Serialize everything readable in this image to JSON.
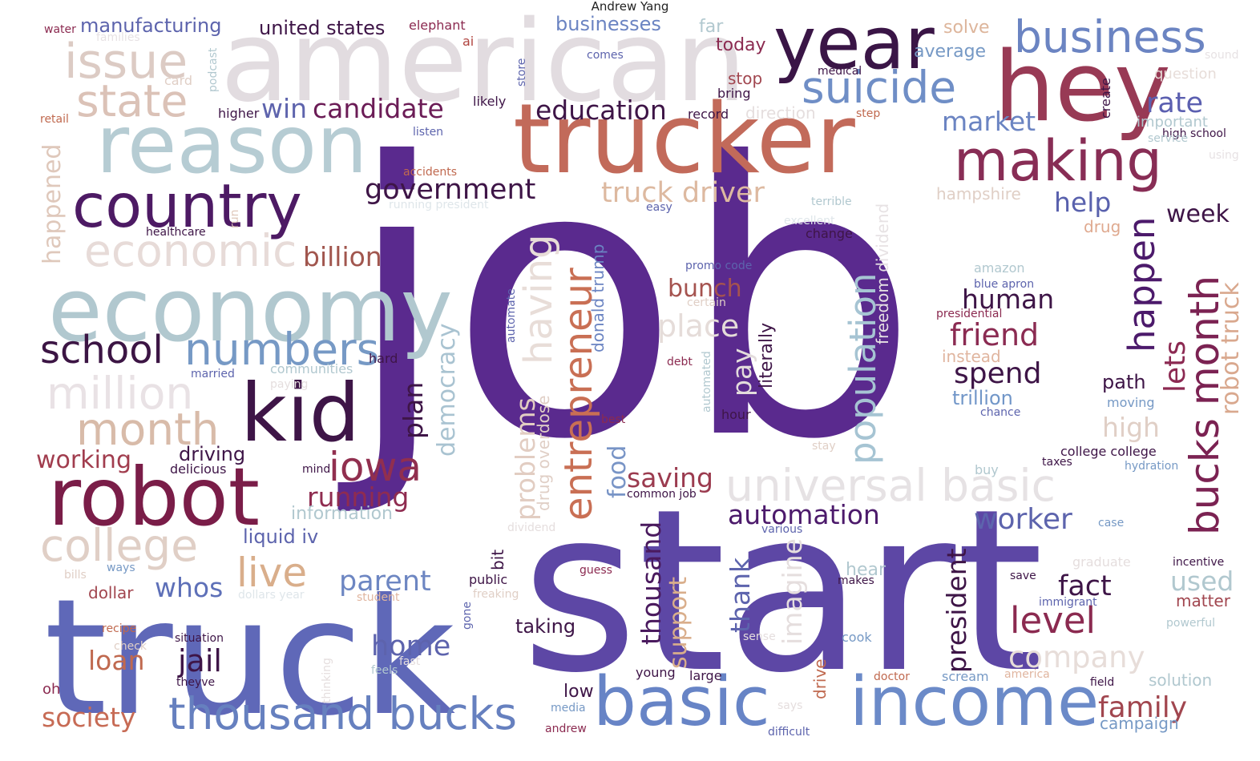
{
  "title": "Andrew Yang",
  "words": [
    {
      "text": "job",
      "color": "#5a2a8e"
    },
    {
      "text": "start",
      "color": "#5d47a5"
    },
    {
      "text": "truck",
      "color": "#5f68b8"
    },
    {
      "text": "american",
      "color": "#e2dce0"
    },
    {
      "text": "trucker",
      "color": "#c26a5a"
    },
    {
      "text": "hey",
      "color": "#983a55"
    },
    {
      "text": "year",
      "color": "#3a1546"
    },
    {
      "text": "reason",
      "color": "#b6ccd3"
    },
    {
      "text": "economy",
      "color": "#b1c8cf"
    },
    {
      "text": "country",
      "color": "#4d1a64"
    },
    {
      "text": "robot",
      "color": "#7a1d48"
    },
    {
      "text": "kid",
      "color": "#3e1547"
    },
    {
      "text": "business",
      "color": "#6b84c2"
    },
    {
      "text": "suicide",
      "color": "#6f8ec6"
    },
    {
      "text": "making",
      "color": "#882d55"
    },
    {
      "text": "basic",
      "color": "#6784c6"
    },
    {
      "text": "income",
      "color": "#6b8ac8"
    },
    {
      "text": "issue",
      "color": "#dccbc4"
    },
    {
      "text": "state",
      "color": "#dbc2b7"
    },
    {
      "text": "economic",
      "color": "#e7dbd8"
    },
    {
      "text": "numbers",
      "color": "#7699c5"
    },
    {
      "text": "school",
      "color": "#3c1544"
    },
    {
      "text": "million",
      "color": "#e9e2e5"
    },
    {
      "text": "month",
      "color": "#d8bba9"
    },
    {
      "text": "college",
      "color": "#e0cfc6"
    },
    {
      "text": "universal basic",
      "color": "#e6e2e4"
    },
    {
      "text": "thousand bucks",
      "color": "#6680bf"
    },
    {
      "text": "entrepreneur",
      "color": "#c96f54"
    },
    {
      "text": "population",
      "color": "#a6c4d3"
    },
    {
      "text": "bucks month",
      "color": "#7b2252"
    },
    {
      "text": "iowa",
      "color": "#912f4f"
    },
    {
      "text": "live",
      "color": "#d9ae8b"
    },
    {
      "text": "having",
      "color": "#e8ddd8"
    },
    {
      "text": "government",
      "color": "#3e1547"
    },
    {
      "text": "education",
      "color": "#3e1547"
    },
    {
      "text": "candidate",
      "color": "#6b1c56"
    },
    {
      "text": "win",
      "color": "#5e64ad"
    },
    {
      "text": "truck driver",
      "color": "#ddb9a0"
    },
    {
      "text": "billion",
      "color": "#a1564e"
    },
    {
      "text": "happen",
      "color": "#4c1a6b"
    },
    {
      "text": "friend",
      "color": "#8b2b52"
    },
    {
      "text": "human",
      "color": "#3e1547"
    },
    {
      "text": "spend",
      "color": "#3e1547"
    },
    {
      "text": "market",
      "color": "#6b84c2"
    },
    {
      "text": "rate",
      "color": "#5b5fb0"
    },
    {
      "text": "help",
      "color": "#5961ad"
    },
    {
      "text": "week",
      "color": "#3e1547"
    },
    {
      "text": "lets",
      "color": "#8c2952"
    },
    {
      "text": "robot truck",
      "color": "#d9a88e"
    },
    {
      "text": "automation",
      "color": "#4c1a6b"
    },
    {
      "text": "worker",
      "color": "#5d64ad"
    },
    {
      "text": "level",
      "color": "#8b2a50"
    },
    {
      "text": "fact",
      "color": "#3e1547"
    },
    {
      "text": "family",
      "color": "#a1464f"
    },
    {
      "text": "president",
      "color": "#3e1547"
    },
    {
      "text": "company",
      "color": "#e7ddd9"
    },
    {
      "text": "running",
      "color": "#8f2c50"
    },
    {
      "text": "saving",
      "color": "#9b3b4f"
    },
    {
      "text": "parent",
      "color": "#6d86c2"
    },
    {
      "text": "home",
      "color": "#5d63ad"
    },
    {
      "text": "jail",
      "color": "#3e1547"
    },
    {
      "text": "loan",
      "color": "#c0694f"
    },
    {
      "text": "society",
      "color": "#c76b55"
    },
    {
      "text": "whos",
      "color": "#5e70b8"
    },
    {
      "text": "working",
      "color": "#a13d4e"
    },
    {
      "text": "driving",
      "color": "#3e1547"
    },
    {
      "text": "democracy",
      "color": "#a9c3d1"
    },
    {
      "text": "plan",
      "color": "#3e1547"
    },
    {
      "text": "problems",
      "color": "#e2cdc2"
    },
    {
      "text": "food",
      "color": "#7894c6"
    },
    {
      "text": "thousand",
      "color": "#4a1a5e"
    },
    {
      "text": "support",
      "color": "#d9ae8b"
    },
    {
      "text": "thank",
      "color": "#5d64ad"
    },
    {
      "text": "imagine",
      "color": "#e5dede"
    },
    {
      "text": "place",
      "color": "#e5dcd9"
    },
    {
      "text": "pay",
      "color": "#e3dcdc"
    },
    {
      "text": "bunch",
      "color": "#a5534f"
    },
    {
      "text": "high",
      "color": "#e0cfc6"
    },
    {
      "text": "path",
      "color": "#3e1547"
    },
    {
      "text": "trillion",
      "color": "#7196c8"
    },
    {
      "text": "used",
      "color": "#b1c8cf"
    },
    {
      "text": "matter",
      "color": "#a1464f"
    },
    {
      "text": "taking",
      "color": "#3e1547"
    },
    {
      "text": "happened",
      "color": "#dfc8bb"
    },
    {
      "text": "manufacturing",
      "color": "#5d64ad"
    },
    {
      "text": "united states",
      "color": "#3e1547"
    },
    {
      "text": "businesses",
      "color": "#6b84c2"
    },
    {
      "text": "today",
      "color": "#8b2a50"
    },
    {
      "text": "solve",
      "color": "#ddb59b"
    },
    {
      "text": "far",
      "color": "#b1c8cf"
    },
    {
      "text": "average",
      "color": "#7699c5"
    },
    {
      "text": "stop",
      "color": "#a1464f"
    },
    {
      "text": "liquid iv",
      "color": "#5d64ad"
    },
    {
      "text": "dollar",
      "color": "#a1464f"
    },
    {
      "text": "instead",
      "color": "#e0b59f"
    },
    {
      "text": "hampshire",
      "color": "#e0cfc6"
    },
    {
      "text": "drug",
      "color": "#dfa98f"
    },
    {
      "text": "low",
      "color": "#3e1547"
    },
    {
      "text": "hear",
      "color": "#b1c8cf"
    },
    {
      "text": "solution",
      "color": "#b1c8cf"
    },
    {
      "text": "campaign",
      "color": "#7699c5"
    },
    {
      "text": "create",
      "color": "#3e1547"
    },
    {
      "text": "important",
      "color": "#b1c8cf"
    },
    {
      "text": "question",
      "color": "#e7ddd9"
    },
    {
      "text": "direction",
      "color": "#e5dede"
    },
    {
      "text": "information",
      "color": "#b1c8cf"
    },
    {
      "text": "drug overdose",
      "color": "#e0cfc6"
    },
    {
      "text": "donald trump",
      "color": "#6b84c2"
    },
    {
      "text": "literally",
      "color": "#3e1547"
    },
    {
      "text": "freedom dividend",
      "color": "#e7e2e4"
    },
    {
      "text": "drive",
      "color": "#c0694f"
    },
    {
      "text": "bit",
      "color": "#3e1547"
    },
    {
      "text": "elephant",
      "color": "#8b2a50"
    },
    {
      "text": "ai",
      "color": "#b0443f"
    },
    {
      "text": "water",
      "color": "#8b2a50"
    },
    {
      "text": "families",
      "color": "#e7e2e4"
    },
    {
      "text": "card",
      "color": "#e0cfc6"
    },
    {
      "text": "podcast",
      "color": "#b1c8cf"
    },
    {
      "text": "store",
      "color": "#5d64ad"
    },
    {
      "text": "comes",
      "color": "#5d64ad"
    },
    {
      "text": "medical",
      "color": "#3e1547"
    },
    {
      "text": "bring",
      "color": "#3e1547"
    },
    {
      "text": "record",
      "color": "#3e1547"
    },
    {
      "text": "step",
      "color": "#c0694f"
    },
    {
      "text": "sound",
      "color": "#e7e2e4"
    },
    {
      "text": "high school",
      "color": "#3e1547"
    },
    {
      "text": "service",
      "color": "#b1c8cf"
    },
    {
      "text": "using",
      "color": "#e7e2e4"
    },
    {
      "text": "higher",
      "color": "#3e1547"
    },
    {
      "text": "likely",
      "color": "#3e1547"
    },
    {
      "text": "retail",
      "color": "#c0694f"
    },
    {
      "text": "listen",
      "color": "#5d64ad"
    },
    {
      "text": "accidents",
      "color": "#c0694f"
    },
    {
      "text": "running president",
      "color": "#dfe6ea"
    },
    {
      "text": "easy",
      "color": "#5d64ad"
    },
    {
      "text": "terrible",
      "color": "#b1c8cf"
    },
    {
      "text": "excellent",
      "color": "#dfe6ea"
    },
    {
      "text": "change",
      "color": "#3e1547"
    },
    {
      "text": "run",
      "color": "#dfc8bb"
    },
    {
      "text": "healthcare",
      "color": "#3e1547"
    },
    {
      "text": "promo code",
      "color": "#5d64ad"
    },
    {
      "text": "certain",
      "color": "#e0cfc6"
    },
    {
      "text": "automate",
      "color": "#5d64ad"
    },
    {
      "text": "amazon",
      "color": "#b1c8cf"
    },
    {
      "text": "blue apron",
      "color": "#5d64ad"
    },
    {
      "text": "presidential",
      "color": "#8b2a50"
    },
    {
      "text": "hard",
      "color": "#3e1547"
    },
    {
      "text": "debt",
      "color": "#8b2a50"
    },
    {
      "text": "automated",
      "color": "#b1c8cf"
    },
    {
      "text": "hour",
      "color": "#3e1547"
    },
    {
      "text": "married",
      "color": "#5d64ad"
    },
    {
      "text": "communities",
      "color": "#b1c8cf"
    },
    {
      "text": "paying",
      "color": "#e5dede"
    },
    {
      "text": "moving",
      "color": "#7699c5"
    },
    {
      "text": "chance",
      "color": "#5d64ad"
    },
    {
      "text": "best",
      "color": "#8b2a50"
    },
    {
      "text": "stay",
      "color": "#e0cfc6"
    },
    {
      "text": "college college",
      "color": "#3e1547"
    },
    {
      "text": "taxes",
      "color": "#3e1547"
    },
    {
      "text": "hydration",
      "color": "#7699c5"
    },
    {
      "text": "buy",
      "color": "#b1c8cf"
    },
    {
      "text": "delicious",
      "color": "#3e1547"
    },
    {
      "text": "mind",
      "color": "#3e1547"
    },
    {
      "text": "common job",
      "color": "#3e1547"
    },
    {
      "text": "various",
      "color": "#5d64ad"
    },
    {
      "text": "dividend",
      "color": "#e5dede"
    },
    {
      "text": "case",
      "color": "#7699c5"
    },
    {
      "text": "incentive",
      "color": "#3e1547"
    },
    {
      "text": "graduate",
      "color": "#e5dede"
    },
    {
      "text": "save",
      "color": "#3e1547"
    },
    {
      "text": "immigrant",
      "color": "#5d64ad"
    },
    {
      "text": "powerful",
      "color": "#b1c8cf"
    },
    {
      "text": "makes",
      "color": "#3e1547"
    },
    {
      "text": "guess",
      "color": "#8b2a50"
    },
    {
      "text": "public",
      "color": "#3e1547"
    },
    {
      "text": "freaking",
      "color": "#e0cfc6"
    },
    {
      "text": "student",
      "color": "#e0b59f"
    },
    {
      "text": "gone",
      "color": "#5d64ad"
    },
    {
      "text": "ways",
      "color": "#7699c5"
    },
    {
      "text": "bills",
      "color": "#e0cfc6"
    },
    {
      "text": "dollars year",
      "color": "#dfe6ea"
    },
    {
      "text": "recipe",
      "color": "#c0694f"
    },
    {
      "text": "check",
      "color": "#e0cfc6"
    },
    {
      "text": "situation",
      "color": "#3e1547"
    },
    {
      "text": "theyve",
      "color": "#3e1547"
    },
    {
      "text": "oh",
      "color": "#8b2a50"
    },
    {
      "text": "thinking",
      "color": "#e5dede"
    },
    {
      "text": "fast",
      "color": "#e5dede"
    },
    {
      "text": "feels",
      "color": "#b1c8cf"
    },
    {
      "text": "media",
      "color": "#7699c5"
    },
    {
      "text": "andrew",
      "color": "#8b2a50"
    },
    {
      "text": "young",
      "color": "#3e1547"
    },
    {
      "text": "large",
      "color": "#3e1547"
    },
    {
      "text": "sense",
      "color": "#e5dede"
    },
    {
      "text": "cook",
      "color": "#7699c5"
    },
    {
      "text": "doctor",
      "color": "#c0694f"
    },
    {
      "text": "scream",
      "color": "#7699c5"
    },
    {
      "text": "america",
      "color": "#e0b59f"
    },
    {
      "text": "field",
      "color": "#3e1547"
    },
    {
      "text": "says",
      "color": "#e5dede"
    },
    {
      "text": "difficult",
      "color": "#5d64ad"
    }
  ]
}
